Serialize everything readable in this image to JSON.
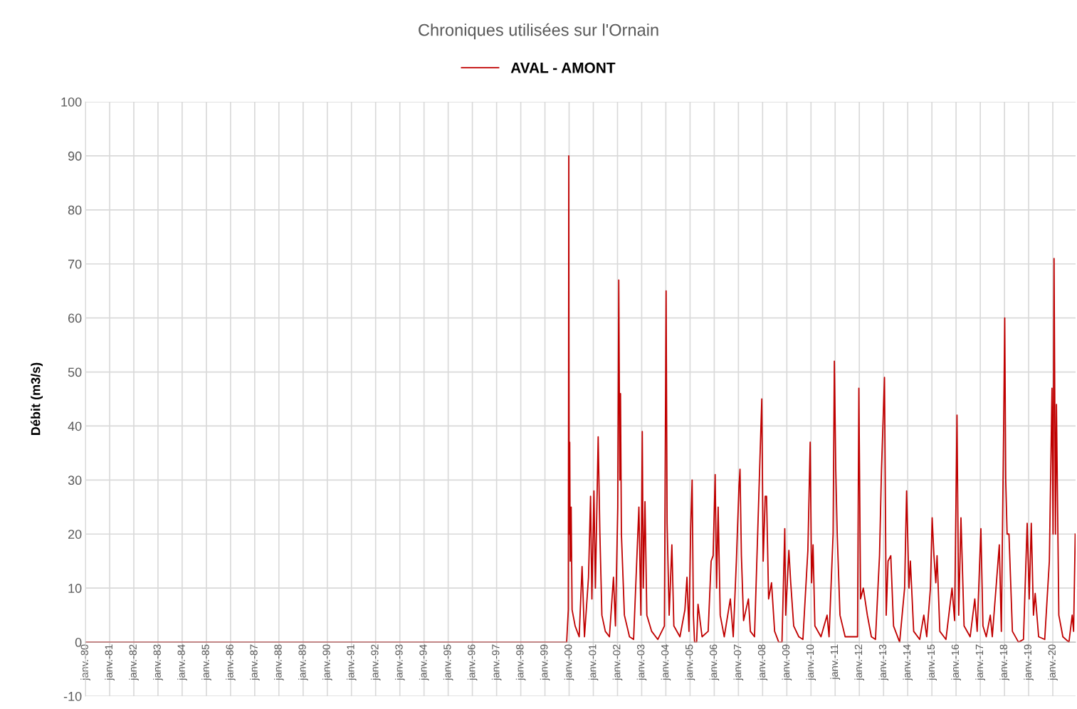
{
  "chart_data": {
    "type": "line",
    "title": "Chroniques utilisées sur l'Ornain",
    "ylabel": "Débit (m3/s)",
    "legend": "top",
    "grid": true,
    "marker": "none",
    "line_style": "solid",
    "xlim": [
      "1980-01-01",
      "2020-12-10"
    ],
    "xticks": [
      {
        "value": "1980-01-01",
        "label": "janv.-80"
      },
      {
        "value": "1981-01-01",
        "label": "janv.-81"
      },
      {
        "value": "1982-01-01",
        "label": "janv.-82"
      },
      {
        "value": "1983-01-01",
        "label": "janv.-83"
      },
      {
        "value": "1984-01-01",
        "label": "janv.-84"
      },
      {
        "value": "1985-01-01",
        "label": "janv.-85"
      },
      {
        "value": "1986-01-01",
        "label": "janv.-86"
      },
      {
        "value": "1987-01-01",
        "label": "janv.-87"
      },
      {
        "value": "1988-01-01",
        "label": "janv.-88"
      },
      {
        "value": "1989-01-01",
        "label": "janv.-89"
      },
      {
        "value": "1990-01-01",
        "label": "janv.-90"
      },
      {
        "value": "1991-01-01",
        "label": "janv.-91"
      },
      {
        "value": "1992-01-01",
        "label": "janv.-92"
      },
      {
        "value": "1993-01-01",
        "label": "janv.-93"
      },
      {
        "value": "1994-01-01",
        "label": "janv.-94"
      },
      {
        "value": "1995-01-01",
        "label": "janv.-95"
      },
      {
        "value": "1996-01-01",
        "label": "janv.-96"
      },
      {
        "value": "1997-01-01",
        "label": "janv.-97"
      },
      {
        "value": "1998-01-01",
        "label": "janv.-98"
      },
      {
        "value": "1999-01-01",
        "label": "janv.-99"
      },
      {
        "value": "2000-01-01",
        "label": "janv.-00"
      },
      {
        "value": "2001-01-01",
        "label": "janv.-01"
      },
      {
        "value": "2002-01-01",
        "label": "janv.-02"
      },
      {
        "value": "2003-01-01",
        "label": "janv.-03"
      },
      {
        "value": "2004-01-01",
        "label": "janv.-04"
      },
      {
        "value": "2005-01-01",
        "label": "janv.-05"
      },
      {
        "value": "2006-01-01",
        "label": "janv.-06"
      },
      {
        "value": "2007-01-01",
        "label": "janv.-07"
      },
      {
        "value": "2008-01-01",
        "label": "janv.-08"
      },
      {
        "value": "2009-01-01",
        "label": "janv.-09"
      },
      {
        "value": "2010-01-01",
        "label": "janv.-10"
      },
      {
        "value": "2011-01-01",
        "label": "janv.-11"
      },
      {
        "value": "2012-01-01",
        "label": "janv.-12"
      },
      {
        "value": "2013-01-01",
        "label": "janv.-13"
      },
      {
        "value": "2014-01-01",
        "label": "janv.-14"
      },
      {
        "value": "2015-01-01",
        "label": "janv.-15"
      },
      {
        "value": "2016-01-01",
        "label": "janv.-16"
      },
      {
        "value": "2017-01-01",
        "label": "janv.-17"
      },
      {
        "value": "2018-01-01",
        "label": "janv.-18"
      },
      {
        "value": "2019-01-01",
        "label": "janv.-19"
      },
      {
        "value": "2020-01-01",
        "label": "janv.-20"
      }
    ],
    "ylim": [
      -10,
      100
    ],
    "yticks": [
      -10,
      0,
      10,
      20,
      30,
      40,
      50,
      60,
      70,
      80,
      90,
      100
    ],
    "series": [
      {
        "name": "AVAL - AMONT",
        "color": "#c00000",
        "x": [
          "1980-01-01",
          "1999-11-25",
          "1999-12-20",
          "1999-12-24",
          "1999-12-27",
          "1999-12-29",
          "2000-01-03",
          "2000-01-10",
          "2000-01-18",
          "2000-02-01",
          "2000-02-15",
          "2000-04-01",
          "2000-06-01",
          "2000-07-15",
          "2000-08-20",
          "2000-10-20",
          "2000-11-20",
          "2000-12-10",
          "2001-01-10",
          "2001-02-01",
          "2001-03-15",
          "2001-04-10",
          "2001-05-10",
          "2001-07-01",
          "2001-09-01",
          "2001-11-01",
          "2001-12-01",
          "2002-01-05",
          "2002-01-20",
          "2002-02-05",
          "2002-02-15",
          "2002-03-01",
          "2002-04-15",
          "2002-07-01",
          "2002-09-01",
          "2002-11-20",
          "2002-12-20",
          "2003-01-10",
          "2003-01-25",
          "2003-02-20",
          "2003-03-20",
          "2003-06-01",
          "2003-09-01",
          "2003-12-10",
          "2004-01-05",
          "2004-01-20",
          "2004-02-20",
          "2004-04-01",
          "2004-05-01",
          "2004-08-01",
          "2004-10-15",
          "2004-11-15",
          "2004-12-15",
          "2005-01-10",
          "2005-02-01",
          "2005-02-20",
          "2005-03-10",
          "2005-04-10",
          "2005-05-01",
          "2005-07-01",
          "2005-10-01",
          "2005-11-15",
          "2005-12-15",
          "2006-01-15",
          "2006-02-05",
          "2006-03-01",
          "2006-04-01",
          "2006-06-01",
          "2006-09-01",
          "2006-10-15",
          "2006-12-01",
          "2007-01-10",
          "2007-01-25",
          "2007-02-15",
          "2007-03-20",
          "2007-06-01",
          "2007-07-01",
          "2007-09-01",
          "2007-12-20",
          "2008-01-10",
          "2008-02-10",
          "2008-03-01",
          "2008-04-01",
          "2008-05-15",
          "2008-07-01",
          "2008-09-01",
          "2008-10-20",
          "2008-12-01",
          "2008-12-15",
          "2009-02-01",
          "2009-03-01",
          "2009-04-15",
          "2009-07-01",
          "2009-09-01",
          "2009-11-15",
          "2009-12-20",
          "2010-01-10",
          "2010-02-01",
          "2010-03-01",
          "2010-06-01",
          "2010-09-01",
          "2010-10-01",
          "2010-12-01",
          "2010-12-20",
          "2011-01-10",
          "2011-02-01",
          "2011-03-15",
          "2011-06-01",
          "2011-09-01",
          "2011-12-05",
          "2011-12-25",
          "2012-01-20",
          "2012-03-01",
          "2012-05-01",
          "2012-07-01",
          "2012-09-01",
          "2012-11-01",
          "2012-12-01",
          "2013-01-15",
          "2013-02-10",
          "2013-03-10",
          "2013-04-20",
          "2013-06-01",
          "2013-09-01",
          "2013-11-15",
          "2013-12-15",
          "2014-01-20",
          "2014-02-10",
          "2014-04-01",
          "2014-07-01",
          "2014-09-01",
          "2014-10-15",
          "2014-12-10",
          "2015-01-05",
          "2015-02-01",
          "2015-03-01",
          "2015-03-20",
          "2015-05-01",
          "2015-08-01",
          "2015-11-01",
          "2015-12-10",
          "2016-01-15",
          "2016-02-10",
          "2016-03-15",
          "2016-05-01",
          "2016-08-01",
          "2016-10-10",
          "2016-11-15",
          "2017-01-10",
          "2017-02-10",
          "2017-04-01",
          "2017-06-01",
          "2017-07-01",
          "2017-10-15",
          "2017-11-15",
          "2017-12-20",
          "2018-01-05",
          "2018-01-20",
          "2018-02-10",
          "2018-03-10",
          "2018-05-01",
          "2018-08-01",
          "2018-10-15",
          "2018-12-10",
          "2019-01-10",
          "2019-02-10",
          "2019-03-15",
          "2019-04-10",
          "2019-06-01",
          "2019-09-01",
          "2019-11-10",
          "2019-12-20",
          "2020-01-05",
          "2020-01-20",
          "2020-02-10",
          "2020-02-25",
          "2020-04-01",
          "2020-06-01",
          "2020-09-01",
          "2020-10-20",
          "2020-11-10",
          "2020-12-05"
        ],
        "values": [
          0,
          0,
          6,
          45,
          90,
          58,
          20,
          37,
          15,
          25,
          6,
          3,
          1,
          14,
          1,
          12,
          27,
          8,
          28,
          10,
          38,
          20,
          5,
          2,
          1,
          12,
          3,
          25,
          67,
          30,
          46,
          20,
          5,
          1,
          0.5,
          25,
          5,
          39,
          10,
          26,
          5,
          2,
          0.5,
          3,
          65,
          22,
          5,
          18,
          3,
          1,
          6,
          12,
          2,
          21,
          30,
          5,
          0,
          0,
          7,
          1,
          2,
          15,
          16,
          31,
          10,
          25,
          5,
          1,
          8,
          1,
          15,
          29,
          32,
          16,
          4,
          8,
          2,
          1,
          45,
          15,
          27,
          27,
          8,
          11,
          2,
          0,
          0,
          21,
          5,
          17,
          11,
          3,
          1,
          0.5,
          17,
          37,
          11,
          18,
          3,
          1,
          5,
          1,
          20,
          52,
          32,
          20,
          5,
          1,
          1,
          1,
          47,
          8,
          10,
          5,
          1,
          0.5,
          16,
          32,
          49,
          5,
          15,
          16,
          3,
          0,
          10,
          28,
          10,
          15,
          2,
          0.5,
          5,
          1,
          10,
          23,
          16,
          11,
          16,
          2,
          0.5,
          10,
          4,
          42,
          5,
          23,
          3,
          1,
          8,
          2,
          21,
          3,
          1,
          5,
          1,
          18,
          2,
          40,
          60,
          30,
          20,
          20,
          2,
          0,
          0.5,
          22,
          8,
          22,
          5,
          9,
          1,
          0.5,
          15,
          47,
          20,
          71,
          20,
          44,
          5,
          1,
          0,
          5,
          2,
          20
        ]
      }
    ]
  }
}
